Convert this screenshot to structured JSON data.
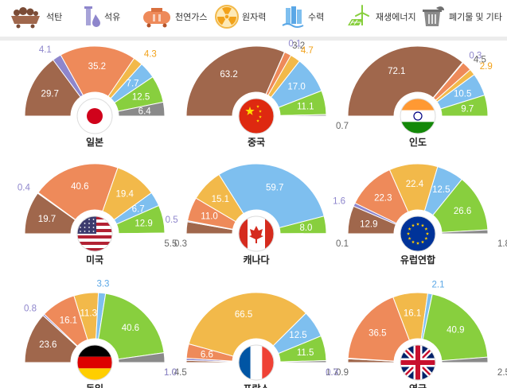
{
  "legend": [
    {
      "key": "coal",
      "label": "석탄",
      "icon": "coal-cart-icon",
      "color": "#a0674c"
    },
    {
      "key": "oil",
      "label": "석유",
      "icon": "oil-drop-icon",
      "color": "#8e86cc"
    },
    {
      "key": "gas",
      "label": "천연가스",
      "icon": "gas-tank-icon",
      "color": "#ee8a5a"
    },
    {
      "key": "nuclear",
      "label": "원자력",
      "icon": "radiation-icon",
      "color": "#f2b94a"
    },
    {
      "key": "hydro",
      "label": "수력",
      "icon": "water-icon",
      "color": "#7ebfef"
    },
    {
      "key": "renewable",
      "label": "재생에너지",
      "icon": "wind-turbine-icon",
      "color": "#88cf3e"
    },
    {
      "key": "waste",
      "label": "폐기물 및 기타",
      "icon": "recycle-bin-icon",
      "color": "#8a8a8a"
    }
  ],
  "chart_data": [
    {
      "type": "pie",
      "subtype": "half-donut",
      "name": "일본",
      "flag": "japan-flag-icon",
      "values": [
        {
          "s": "coal",
          "v": 29.7
        },
        {
          "s": "oil",
          "v": 4.1
        },
        {
          "s": "gas",
          "v": 35.2
        },
        {
          "s": "nuclear",
          "v": 4.3
        },
        {
          "s": "hydro",
          "v": 7.7
        },
        {
          "s": "renewable",
          "v": 12.5
        },
        {
          "s": "waste",
          "v": 6.4
        }
      ]
    },
    {
      "type": "pie",
      "subtype": "half-donut",
      "name": "중국",
      "flag": "china-flag-icon",
      "values": [
        {
          "s": "coal",
          "v": 63.2
        },
        {
          "s": "oil",
          "v": 0.1
        },
        {
          "s": "gas",
          "v": 3.2
        },
        {
          "s": "nuclear",
          "v": 4.7
        },
        {
          "s": "hydro",
          "v": 17.0
        },
        {
          "s": "renewable",
          "v": 11.1
        },
        {
          "s": "waste",
          "v": 0.7
        }
      ]
    },
    {
      "type": "pie",
      "subtype": "half-donut",
      "name": "인도",
      "flag": "india-flag-icon",
      "values": [
        {
          "s": "coal",
          "v": 72.1
        },
        {
          "s": "oil",
          "v": 0.3
        },
        {
          "s": "gas",
          "v": 4.5
        },
        {
          "s": "nuclear",
          "v": 2.9
        },
        {
          "s": "hydro",
          "v": 10.5
        },
        {
          "s": "renewable",
          "v": 9.7
        }
      ]
    },
    {
      "type": "pie",
      "subtype": "half-donut",
      "name": "미국",
      "flag": "usa-flag-icon",
      "values": [
        {
          "s": "coal",
          "v": 19.7
        },
        {
          "s": "oil",
          "v": 0.4
        },
        {
          "s": "gas",
          "v": 40.6
        },
        {
          "s": "nuclear",
          "v": 19.4
        },
        {
          "s": "hydro",
          "v": 6.7
        },
        {
          "s": "renewable",
          "v": 12.9
        },
        {
          "s": "waste",
          "v": 0.3
        }
      ]
    },
    {
      "type": "pie",
      "subtype": "half-donut",
      "name": "캐나다",
      "flag": "canada-flag-icon",
      "values": [
        {
          "s": "coal",
          "v": 5.5
        },
        {
          "s": "oil",
          "v": 0.5
        },
        {
          "s": "gas",
          "v": 11.0
        },
        {
          "s": "nuclear",
          "v": 15.1
        },
        {
          "s": "hydro",
          "v": 59.7
        },
        {
          "s": "renewable",
          "v": 8.0
        },
        {
          "s": "waste",
          "v": 0.1
        }
      ]
    },
    {
      "type": "pie",
      "subtype": "half-donut",
      "name": "유럽연합",
      "flag": "eu-flag-icon",
      "values": [
        {
          "s": "coal",
          "v": 12.9
        },
        {
          "s": "oil",
          "v": 1.6
        },
        {
          "s": "gas",
          "v": 22.3
        },
        {
          "s": "nuclear",
          "v": 22.4
        },
        {
          "s": "hydro",
          "v": 12.5
        },
        {
          "s": "renewable",
          "v": 26.6
        },
        {
          "s": "waste",
          "v": 1.8
        }
      ]
    },
    {
      "type": "pie",
      "subtype": "half-donut",
      "name": "독일",
      "flag": "germany-flag-icon",
      "values": [
        {
          "s": "coal",
          "v": 23.6
        },
        {
          "s": "oil",
          "v": 0.8
        },
        {
          "s": "gas",
          "v": 16.1
        },
        {
          "s": "nuclear",
          "v": 11.3
        },
        {
          "s": "hydro",
          "v": 3.3
        },
        {
          "s": "renewable",
          "v": 40.6
        },
        {
          "s": "waste",
          "v": 4.5
        }
      ]
    },
    {
      "type": "pie",
      "subtype": "half-donut",
      "name": "프랑스",
      "flag": "france-flag-icon",
      "values": [
        {
          "s": "coal",
          "v": 1.0
        },
        {
          "s": "oil",
          "v": 1.0
        },
        {
          "s": "gas",
          "v": 6.6
        },
        {
          "s": "nuclear",
          "v": 66.5
        },
        {
          "s": "hydro",
          "v": 12.5
        },
        {
          "s": "renewable",
          "v": 11.5
        },
        {
          "s": "waste",
          "v": 0.9
        }
      ]
    },
    {
      "type": "pie",
      "subtype": "half-donut",
      "name": "영국",
      "flag": "uk-flag-icon",
      "values": [
        {
          "s": "coal",
          "v": 1.7
        },
        {
          "s": "oil",
          "v": 0.3
        },
        {
          "s": "gas",
          "v": 36.5
        },
        {
          "s": "nuclear",
          "v": 16.1
        },
        {
          "s": "hydro",
          "v": 2.1
        },
        {
          "s": "renewable",
          "v": 40.9
        },
        {
          "s": "waste",
          "v": 2.5
        }
      ]
    }
  ]
}
